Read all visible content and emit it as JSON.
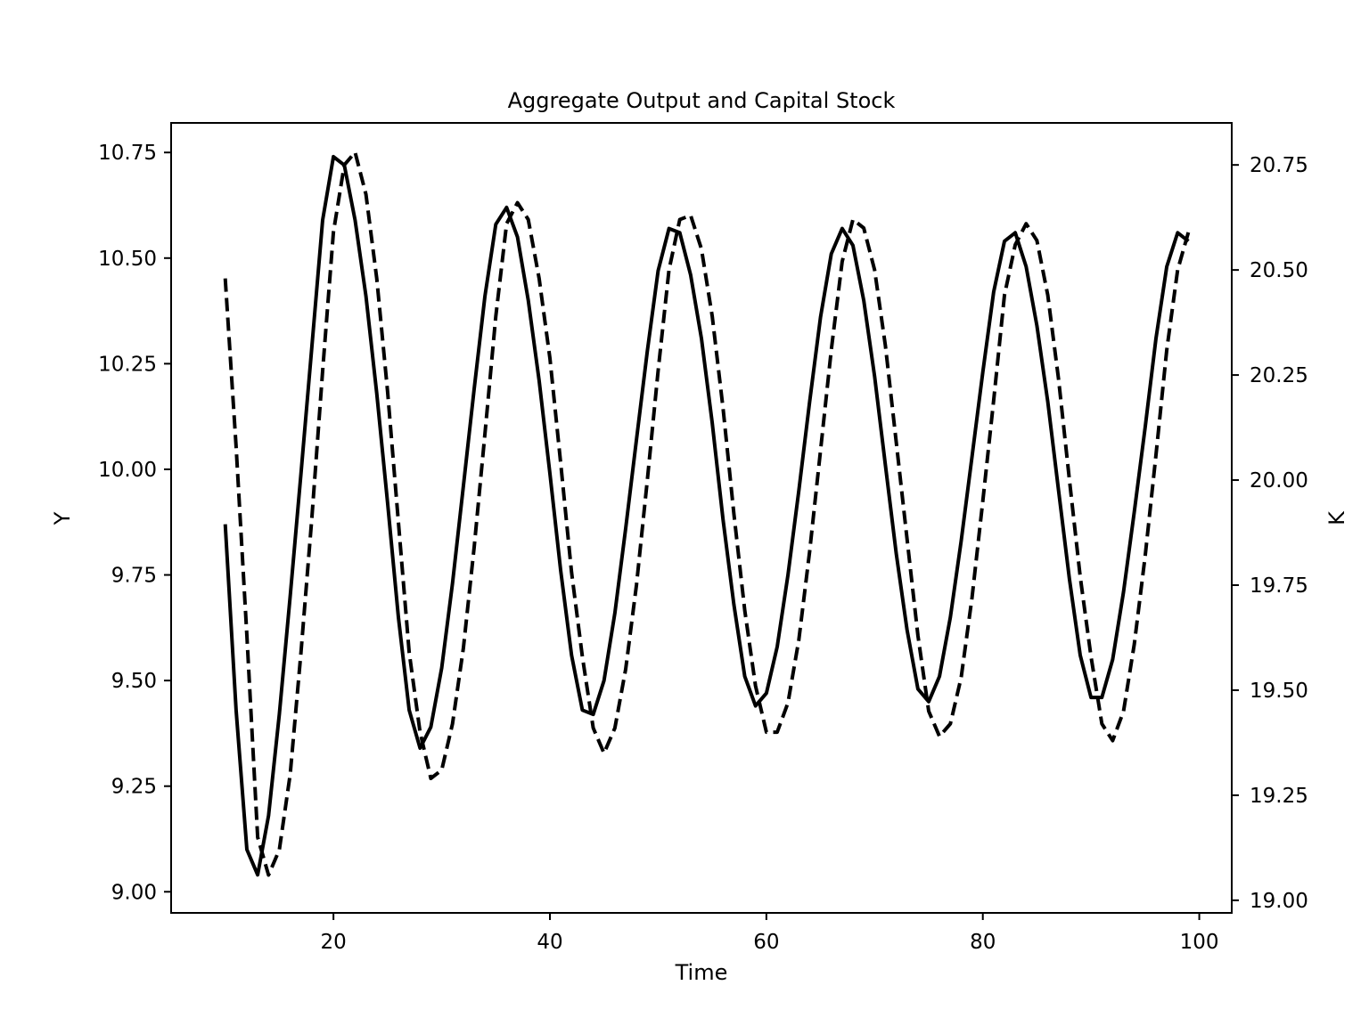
{
  "chart_data": {
    "type": "line",
    "title": "Aggregate Output and Capital Stock",
    "xlabel": "Time",
    "ylabel": "Y",
    "y2label": "K",
    "xlim": [
      5,
      103
    ],
    "ylim": [
      8.95,
      10.82
    ],
    "y2lim": [
      18.97,
      20.85
    ],
    "xticks": [
      20,
      40,
      60,
      80,
      100
    ],
    "yticks": [
      9.0,
      9.25,
      9.5,
      9.75,
      10.0,
      10.25,
      10.5,
      10.75
    ],
    "y2ticks": [
      19.0,
      19.25,
      19.5,
      19.75,
      20.0,
      20.25,
      20.5,
      20.75
    ],
    "grid": false,
    "legend": "none",
    "series": [
      {
        "axis": "left",
        "style": "solid",
        "color": "#000000",
        "x": [
          10,
          11,
          12,
          13,
          14,
          15,
          16,
          17,
          18,
          19,
          20,
          21,
          22,
          23,
          24,
          25,
          26,
          27,
          28,
          29,
          30,
          31,
          32,
          33,
          34,
          35,
          36,
          37,
          38,
          39,
          40,
          41,
          42,
          43,
          44,
          45,
          46,
          47,
          48,
          49,
          50,
          51,
          52,
          53,
          54,
          55,
          56,
          57,
          58,
          59,
          60,
          61,
          62,
          63,
          64,
          65,
          66,
          67,
          68,
          69,
          70,
          71,
          72,
          73,
          74,
          75,
          76,
          77,
          78,
          79,
          80,
          81,
          82,
          83,
          84,
          85,
          86,
          87,
          88,
          89,
          90,
          91,
          92,
          93,
          94,
          95,
          96,
          97,
          98,
          99
        ],
        "values": [
          9.87,
          9.43,
          9.1,
          9.04,
          9.18,
          9.42,
          9.7,
          9.99,
          10.29,
          10.59,
          10.74,
          10.72,
          10.59,
          10.41,
          10.18,
          9.92,
          9.65,
          9.43,
          9.34,
          9.39,
          9.53,
          9.73,
          9.96,
          10.19,
          10.41,
          10.58,
          10.62,
          10.55,
          10.4,
          10.21,
          9.99,
          9.76,
          9.56,
          9.43,
          9.42,
          9.5,
          9.66,
          9.86,
          10.07,
          10.28,
          10.47,
          10.57,
          10.56,
          10.46,
          10.31,
          10.11,
          9.88,
          9.68,
          9.51,
          9.44,
          9.47,
          9.58,
          9.75,
          9.95,
          10.16,
          10.36,
          10.51,
          10.57,
          10.53,
          10.4,
          10.22,
          10.01,
          9.8,
          9.62,
          9.48,
          9.45,
          9.51,
          9.65,
          9.83,
          10.03,
          10.23,
          10.42,
          10.54,
          10.56,
          10.48,
          10.34,
          10.16,
          9.95,
          9.74,
          9.56,
          9.46,
          9.46,
          9.55,
          9.71,
          9.9,
          10.1,
          10.31,
          10.48,
          10.56,
          10.54
        ]
      },
      {
        "axis": "right",
        "style": "dashed",
        "color": "#000000",
        "x": [
          10,
          11,
          12,
          13,
          14,
          15,
          16,
          17,
          18,
          19,
          20,
          21,
          22,
          23,
          24,
          25,
          26,
          27,
          28,
          29,
          30,
          31,
          32,
          33,
          34,
          35,
          36,
          37,
          38,
          39,
          40,
          41,
          42,
          43,
          44,
          45,
          46,
          47,
          48,
          49,
          50,
          51,
          52,
          53,
          54,
          55,
          56,
          57,
          58,
          59,
          60,
          61,
          62,
          63,
          64,
          65,
          66,
          67,
          68,
          69,
          70,
          71,
          72,
          73,
          74,
          75,
          76,
          77,
          78,
          79,
          80,
          81,
          82,
          83,
          84,
          85,
          86,
          87,
          88,
          89,
          90,
          91,
          92,
          93,
          94,
          95,
          96,
          97,
          98,
          99
        ],
        "values": [
          20.48,
          20.08,
          19.63,
          19.15,
          19.06,
          19.12,
          19.3,
          19.59,
          19.91,
          20.26,
          20.59,
          20.75,
          20.78,
          20.68,
          20.48,
          20.21,
          19.9,
          19.59,
          19.4,
          19.29,
          19.31,
          19.42,
          19.6,
          19.84,
          20.11,
          20.39,
          20.61,
          20.66,
          20.62,
          20.48,
          20.29,
          20.04,
          19.78,
          19.58,
          19.41,
          19.35,
          19.41,
          19.55,
          19.75,
          20.0,
          20.26,
          20.5,
          20.62,
          20.63,
          20.55,
          20.39,
          20.17,
          19.92,
          19.69,
          19.51,
          19.4,
          19.4,
          19.47,
          19.62,
          19.83,
          20.07,
          20.31,
          20.52,
          20.62,
          20.6,
          20.5,
          20.32,
          20.09,
          19.86,
          19.63,
          19.45,
          19.39,
          19.42,
          19.53,
          19.72,
          19.95,
          20.19,
          20.44,
          20.56,
          20.61,
          20.57,
          20.44,
          20.24,
          20.0,
          19.77,
          19.58,
          19.42,
          19.38,
          19.45,
          19.61,
          19.82,
          20.06,
          20.31,
          20.5,
          20.59
        ]
      }
    ]
  }
}
